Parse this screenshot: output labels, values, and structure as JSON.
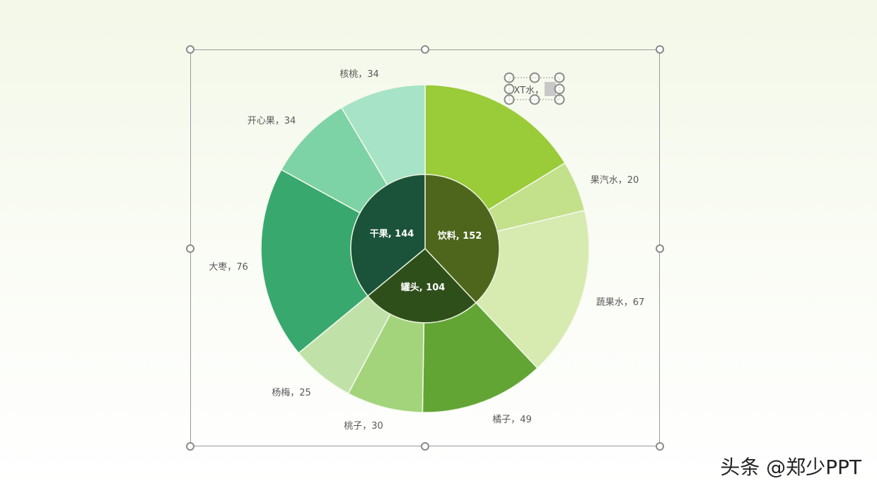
{
  "chart_data": {
    "type": "sunburst",
    "start": "top, clockwise",
    "inner": [
      {
        "name": "饮料",
        "value": 152,
        "color": "#4d661c"
      },
      {
        "name": "罐头",
        "value": 104,
        "color": "#2f4f1a"
      },
      {
        "name": "干果",
        "value": 144,
        "color": "#1a533a"
      }
    ],
    "outer": [
      {
        "name": "XT水",
        "parent": "饮料",
        "value": 65,
        "color": "#9acb38"
      },
      {
        "name": "果汽水",
        "parent": "饮料",
        "value": 20,
        "color": "#c3e08a"
      },
      {
        "name": "蔬果水",
        "parent": "饮料",
        "value": 67,
        "color": "#d7eab0"
      },
      {
        "name": "橘子",
        "parent": "罐头",
        "value": 49,
        "color": "#62a535"
      },
      {
        "name": "桃子",
        "parent": "罐头",
        "value": 30,
        "color": "#a3d47c"
      },
      {
        "name": "杨梅",
        "parent": "罐头",
        "value": 25,
        "color": "#c0e2a8"
      },
      {
        "name": "大枣",
        "parent": "干果",
        "value": 76,
        "color": "#38a86e"
      },
      {
        "name": "开心果",
        "parent": "干果",
        "value": 34,
        "color": "#7dd3a6"
      },
      {
        "name": "核桃",
        "parent": "干果",
        "value": 34,
        "color": "#a7e3c6"
      }
    ],
    "label_separator_inner": ", ",
    "label_separator_outer": "，"
  },
  "watermark": "头条 @郑少PPT"
}
